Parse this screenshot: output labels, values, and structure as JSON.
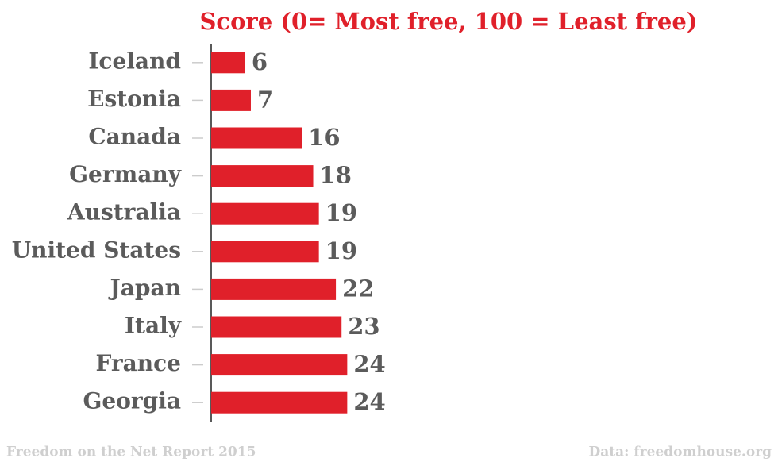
{
  "chart_data": {
    "type": "bar",
    "orientation": "horizontal",
    "title": "Score (0= Most free, 100 = Least free)",
    "categories": [
      "Iceland",
      "Estonia",
      "Canada",
      "Germany",
      "Australia",
      "United States",
      "Japan",
      "Italy",
      "France",
      "Georgia"
    ],
    "values": [
      6,
      7,
      16,
      18,
      19,
      19,
      22,
      23,
      24,
      24
    ],
    "color": "#e0202a",
    "xlim": [
      0,
      100
    ],
    "source_left": "Freedom on the Net Report 2015",
    "source_right": "Data: freedomhouse.org"
  }
}
